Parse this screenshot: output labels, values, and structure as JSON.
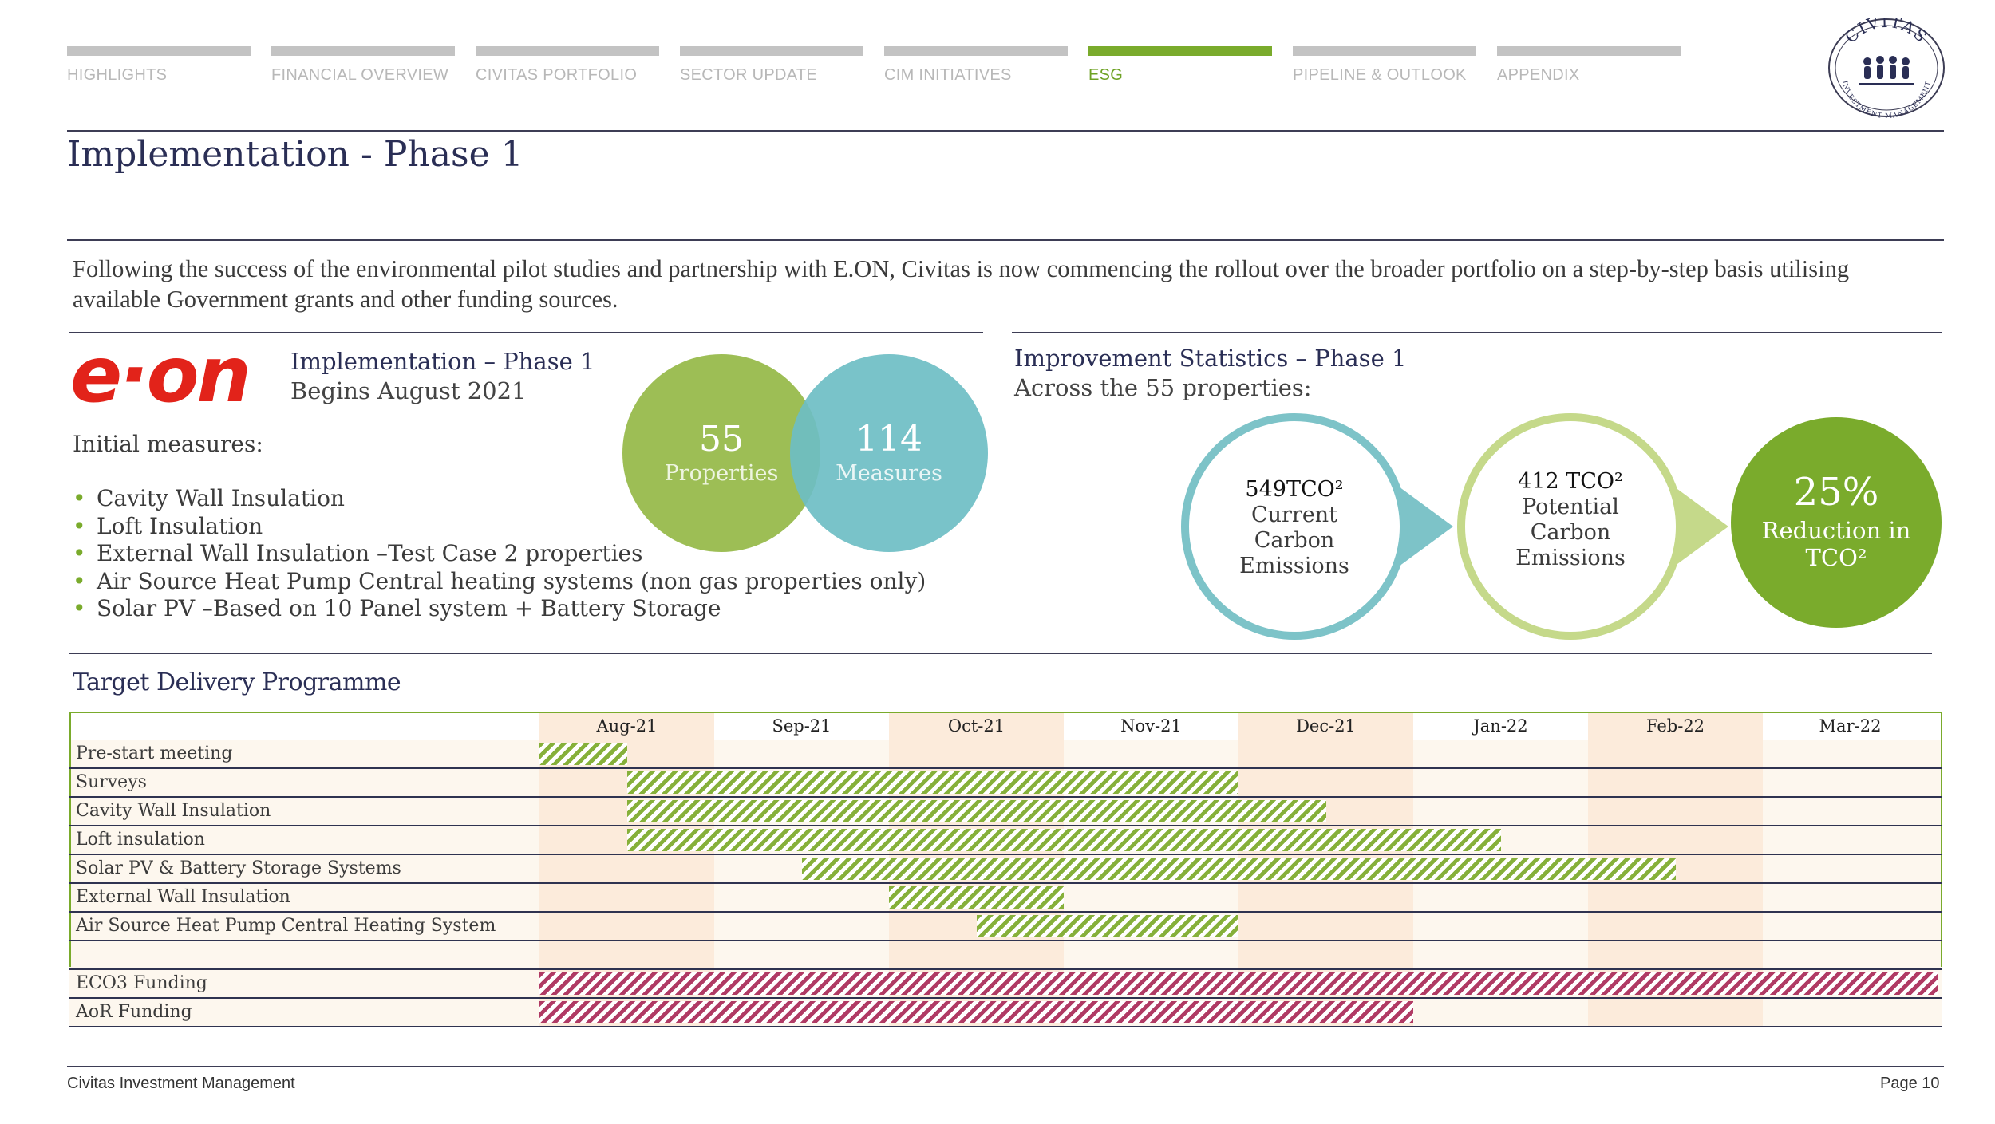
{
  "nav": {
    "items": [
      {
        "label": "HIGHLIGHTS",
        "active": false
      },
      {
        "label": "FINANCIAL OVERVIEW",
        "active": false
      },
      {
        "label": "CIVITAS PORTFOLIO",
        "active": false
      },
      {
        "label": "SECTOR UPDATE",
        "active": false
      },
      {
        "label": "CIM INITIATIVES",
        "active": false
      },
      {
        "label": "ESG",
        "active": true
      },
      {
        "label": "PIPELINE & OUTLOOK",
        "active": false
      },
      {
        "label": "APPENDIX",
        "active": false
      }
    ]
  },
  "logo": {
    "top_text": "CIVITAS",
    "ring_text": "INVESTMENT MANAGEMENT"
  },
  "page_title": "Implementation - Phase 1",
  "intro": "Following the success of the environmental pilot studies and partnership with E.ON, Civitas is now commencing the rollout over the broader portfolio on a step-by-step basis utilising available Government grants and other funding sources.",
  "implementation": {
    "brand": "e·on",
    "title": "Implementation – Phase 1",
    "subtitle": "Begins August 2021",
    "measures_heading": "Initial measures:",
    "measures": [
      "Cavity Wall Insulation",
      "Loft Insulation",
      "External Wall Insulation –Test Case 2 properties",
      "Air Source Heat Pump Central heating systems (non gas properties only)",
      "Solar PV –Based on 10 Panel system + Battery Storage"
    ],
    "properties": {
      "value": "55",
      "label": "Properties"
    },
    "measures_count": {
      "value": "114",
      "label": "Measures"
    }
  },
  "improvement": {
    "title": "Improvement Statistics – Phase 1",
    "subtitle": "Across the 55 properties:",
    "current": {
      "value": "549TCO²",
      "line1": "Current",
      "line2": "Carbon",
      "line3": "Emissions"
    },
    "potential": {
      "value": "412 TCO²",
      "line1": "Potential",
      "line2": "Carbon",
      "line3": "Emissions"
    },
    "reduction": {
      "value": "25%",
      "line1": "Reduction in",
      "line2": "TCO²"
    }
  },
  "programme": {
    "title": "Target Delivery Programme",
    "months": [
      "Aug-21",
      "Sep-21",
      "Oct-21",
      "Nov-21",
      "Dec-21",
      "Jan-22",
      "Feb-22",
      "Mar-22"
    ],
    "tasks": [
      {
        "label": "Pre-start meeting",
        "start": 0,
        "end": 0.5,
        "kind": "works"
      },
      {
        "label": "Surveys",
        "start": 0.5,
        "end": 4,
        "kind": "works"
      },
      {
        "label": "Cavity Wall Insulation",
        "start": 0.5,
        "end": 4.5,
        "kind": "works"
      },
      {
        "label": "Loft insulation",
        "start": 0.5,
        "end": 5.5,
        "kind": "works"
      },
      {
        "label": "Solar PV & Battery Storage Systems",
        "start": 1.5,
        "end": 6.5,
        "kind": "works"
      },
      {
        "label": "External Wall Insulation",
        "start": 2,
        "end": 3,
        "kind": "works"
      },
      {
        "label": "Air Source Heat Pump Central Heating System",
        "start": 2.5,
        "end": 4,
        "kind": "works"
      }
    ],
    "funding": [
      {
        "label": "ECO3 Funding",
        "start": 0,
        "end": 8,
        "kind": "funding"
      },
      {
        "label": "AoR Funding",
        "start": 0,
        "end": 5,
        "kind": "funding"
      }
    ]
  },
  "footer": {
    "left": "Civitas Investment Management",
    "right": "Page 10"
  },
  "colors": {
    "navy": "#2a2e55",
    "green": "#7aab2c",
    "teal": "#6fbfc4",
    "light_green": "#c5d98a",
    "magenta": "#b03a64",
    "eon_red": "#e2231a"
  }
}
